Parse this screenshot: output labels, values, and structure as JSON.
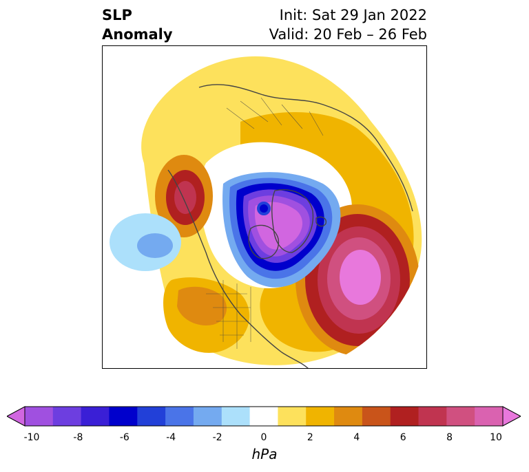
{
  "title": {
    "left_line1": "SLP",
    "left_line2": "Anomaly",
    "init": "Init: Sat 29 Jan 2022",
    "valid": "Valid: 20 Feb – 26 Feb"
  },
  "map": {
    "projection": "north-polar-stereographic",
    "features": [
      {
        "name": "positive-anomaly-north-atlantic",
        "approx_peak_hPa": 10
      },
      {
        "name": "positive-anomaly-gulf-of-alaska",
        "approx_peak_hPa": 8
      },
      {
        "name": "negative-anomaly-arctic-greenland",
        "approx_min_hPa": -10
      },
      {
        "name": "negative-anomaly-north-pacific",
        "approx_min_hPa": -4
      }
    ]
  },
  "colorbar": {
    "unit": "hPa",
    "ticks": [
      "-10",
      "-8",
      "-6",
      "-4",
      "-2",
      "0",
      "2",
      "4",
      "6",
      "8",
      "10"
    ],
    "levels": [
      -10,
      -9,
      -8,
      -7,
      -6,
      -5,
      -4,
      -3,
      -2,
      -1,
      1,
      2,
      3,
      4,
      5,
      6,
      7,
      8,
      9,
      10
    ],
    "colors": [
      "#d166e0",
      "#a050e0",
      "#6d3ee0",
      "#3a1fd6",
      "#0000cc",
      "#2240d8",
      "#4a74e8",
      "#74aaf0",
      "#ace0fb",
      "#ffffff",
      "#fde15c",
      "#f0b400",
      "#df8a10",
      "#c9541a",
      "#b02020",
      "#c03450",
      "#d05080",
      "#da62b0",
      "#e878dc"
    ],
    "extend": "both"
  }
}
